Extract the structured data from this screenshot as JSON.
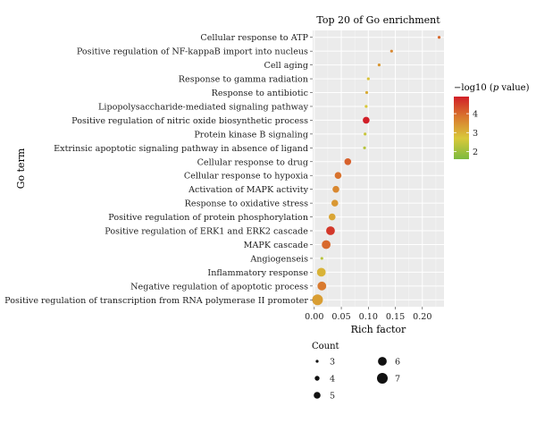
{
  "chart_data": {
    "type": "scatter",
    "title": "Top 20 of Go enrichment",
    "xlabel": "Rich factor",
    "ylabel": "Go term",
    "xlim": [
      -0.003,
      0.24
    ],
    "x_ticks": [
      0.0,
      0.05,
      0.1,
      0.15,
      0.2
    ],
    "x_tick_labels": [
      "0.00",
      "0.05",
      "0.10",
      "0.15",
      "0.20"
    ],
    "grid": true,
    "color_legend": {
      "title_prefix": "−log10 (",
      "title_italic": "p",
      "title_suffix": " value)",
      "range": [
        1.6,
        4.9
      ],
      "ticks": [
        2,
        3,
        4
      ],
      "tick_labels": [
        "2",
        "3",
        "4"
      ],
      "colors": [
        "#7cba3f",
        "#d9c93a",
        "#d97a2e",
        "#d11f28"
      ]
    },
    "size_legend": {
      "title": "Count",
      "values": [
        3,
        4,
        5,
        6,
        7
      ],
      "labels": [
        "3",
        "4",
        "5",
        "6",
        "7"
      ]
    },
    "points": [
      {
        "term": "Cellular response to ATP",
        "rich_factor": 0.231,
        "count": 3,
        "neg_log10_p": 4.0
      },
      {
        "term": "Positive regulation of NF-kappaB import into nucleus",
        "rich_factor": 0.143,
        "count": 3,
        "neg_log10_p": 3.6
      },
      {
        "term": "Cell aging",
        "rich_factor": 0.12,
        "count": 3,
        "neg_log10_p": 3.4
      },
      {
        "term": "Response to gamma radiation",
        "rich_factor": 0.1,
        "count": 3,
        "neg_log10_p": 2.8
      },
      {
        "term": "Response to antibiotic",
        "rich_factor": 0.097,
        "count": 3,
        "neg_log10_p": 3.1
      },
      {
        "term": "Lipopolysaccharide-mediated signaling pathway",
        "rich_factor": 0.096,
        "count": 3,
        "neg_log10_p": 2.7
      },
      {
        "term": "Positive regulation of nitric oxide biosynthetic process",
        "rich_factor": 0.096,
        "count": 5,
        "neg_log10_p": 4.9
      },
      {
        "term": "Protein kinase B signaling",
        "rich_factor": 0.094,
        "count": 3,
        "neg_log10_p": 2.5
      },
      {
        "term": "Extrinsic apoptotic signaling pathway in absence of ligand",
        "rich_factor": 0.093,
        "count": 3,
        "neg_log10_p": 2.3
      },
      {
        "term": "Cellular response to drug",
        "rich_factor": 0.062,
        "count": 5,
        "neg_log10_p": 4.1
      },
      {
        "term": "Cellular response to hypoxia",
        "rich_factor": 0.044,
        "count": 5,
        "neg_log10_p": 3.9
      },
      {
        "term": "Activation of MAPK activity",
        "rich_factor": 0.04,
        "count": 5,
        "neg_log10_p": 3.6
      },
      {
        "term": "Response to oxidative stress",
        "rich_factor": 0.038,
        "count": 5,
        "neg_log10_p": 3.4
      },
      {
        "term": "Positive regulation of protein phosphorylation",
        "rich_factor": 0.033,
        "count": 5,
        "neg_log10_p": 3.2
      },
      {
        "term": "Positive regulation of ERK1 and ERK2 cascade",
        "rich_factor": 0.03,
        "count": 6,
        "neg_log10_p": 4.6
      },
      {
        "term": "MAPK cascade",
        "rich_factor": 0.022,
        "count": 6,
        "neg_log10_p": 4.0
      },
      {
        "term": "Angiogenseis",
        "rich_factor": 0.014,
        "count": 3,
        "neg_log10_p": 2.3
      },
      {
        "term": "Inflammatory response",
        "rich_factor": 0.013,
        "count": 6,
        "neg_log10_p": 3.0
      },
      {
        "term": "Negative regulation of apoptotic process",
        "rich_factor": 0.014,
        "count": 6,
        "neg_log10_p": 3.8
      },
      {
        "term": "Positive regulation of transcription from RNA polymerase II promoter",
        "rich_factor": 0.006,
        "count": 7,
        "neg_log10_p": 3.3
      }
    ]
  }
}
